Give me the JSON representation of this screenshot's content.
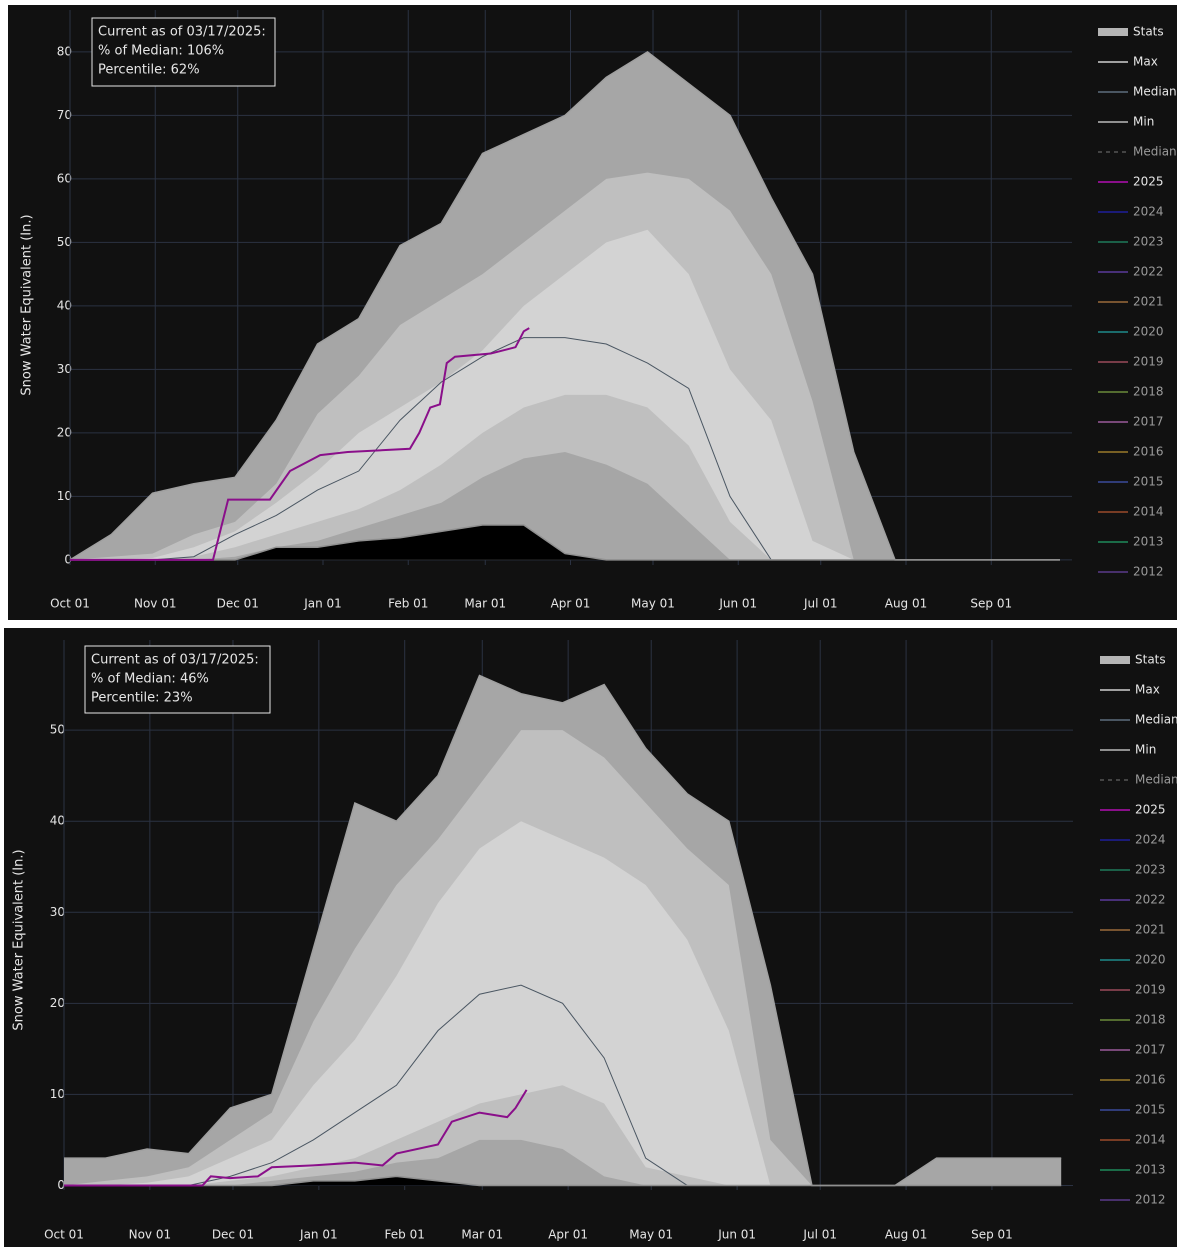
{
  "chart_data": [
    {
      "type": "area",
      "y_label": "Snow Water Equivalent (In.)",
      "annotation": [
        "Current as of 03/17/2025:",
        "% of Median: 106%",
        "Percentile: 62%"
      ],
      "xlim": [
        0,
        364
      ],
      "xticks": [
        {
          "value": 0,
          "label": "Oct 01"
        },
        {
          "value": 31,
          "label": "Nov 01"
        },
        {
          "value": 61,
          "label": "Dec 01"
        },
        {
          "value": 92,
          "label": "Jan 01"
        },
        {
          "value": 123,
          "label": "Feb 01"
        },
        {
          "value": 151,
          "label": "Mar 01"
        },
        {
          "value": 182,
          "label": "Apr 01"
        },
        {
          "value": 212,
          "label": "May 01"
        },
        {
          "value": 243,
          "label": "Jun 01"
        },
        {
          "value": 273,
          "label": "Jul 01"
        },
        {
          "value": 304,
          "label": "Aug 01"
        },
        {
          "value": 335,
          "label": "Sep 01"
        }
      ],
      "ylim": [
        -0.8,
        86.6
      ],
      "yticks": [
        0,
        10,
        20,
        30,
        40,
        50,
        60,
        70,
        80
      ],
      "grid": true,
      "x": [
        0,
        15,
        30,
        45,
        60,
        75,
        90,
        105,
        120,
        135,
        150,
        165,
        180,
        195,
        210,
        225,
        240,
        255,
        270,
        285,
        300,
        315,
        330,
        345,
        360
      ],
      "stats": {
        "name": "Stats",
        "color": "#b5b5b5",
        "fills": [
          "#bfbfbf",
          "#d3d3d3",
          "#bfbfbf",
          "#a6a6a6"
        ],
        "levels": [
          [
            0,
            0.5,
            1,
            4,
            6,
            12,
            23,
            29,
            37,
            41,
            45,
            50,
            55,
            60,
            61,
            60,
            55,
            45,
            25,
            0,
            0,
            0,
            0,
            0,
            0
          ],
          [
            0,
            0,
            0.3,
            2,
            4.5,
            9,
            14,
            20,
            24,
            28,
            33,
            40,
            45,
            50,
            52,
            45,
            30,
            22,
            3,
            0,
            0,
            0,
            0,
            0,
            0
          ],
          [
            0,
            0,
            0,
            0.5,
            2,
            4,
            6,
            8,
            11,
            15,
            20,
            24,
            26,
            26,
            24,
            18,
            6,
            0,
            0,
            0,
            0,
            0,
            0,
            0,
            0
          ],
          [
            0,
            0,
            0,
            0,
            0.5,
            2,
            3,
            5,
            7,
            9,
            13,
            16,
            17,
            15,
            12,
            6,
            0,
            0,
            0,
            0,
            0,
            0,
            0,
            0,
            0
          ]
        ]
      },
      "series": [
        {
          "name": "Max",
          "color": "#a0a0a0",
          "fill": "#a6a6a6",
          "values": [
            0,
            4,
            10.5,
            12,
            13,
            22,
            34,
            38,
            49.5,
            53,
            64,
            67,
            70,
            76,
            80,
            75,
            70,
            57,
            45,
            17,
            0,
            0,
            0,
            0,
            0
          ]
        },
        {
          "name": "Median",
          "color": "#4a5662",
          "values": [
            0,
            0,
            0,
            0.5,
            4,
            7,
            11,
            14,
            22,
            28,
            32,
            35,
            35,
            34,
            31,
            27,
            10,
            0,
            0,
            0,
            0,
            0,
            0,
            0,
            0
          ]
        },
        {
          "name": "Min",
          "color": "#909090",
          "fill": "#000000",
          "values": [
            0,
            0,
            0,
            0,
            0,
            2,
            2,
            3,
            3.5,
            4.5,
            5.5,
            5.5,
            1,
            0,
            0,
            0,
            0,
            0,
            0,
            0,
            0,
            0,
            0,
            0,
            0
          ]
        },
        {
          "name": "Median",
          "color": "#555555",
          "dash": true,
          "visible": false
        },
        {
          "name": "2025",
          "color": "#8a0f8a",
          "x": [
            0,
            52,
            57.5,
            72.7,
            80,
            91,
            101,
            123.6,
            127,
            131,
            134.5,
            137,
            140,
            153,
            162,
            165,
            167
          ],
          "values": [
            0,
            0,
            9.5,
            9.5,
            14,
            16.5,
            17,
            17.5,
            20,
            24,
            24.5,
            31,
            32,
            32.5,
            33.5,
            36,
            36.5
          ]
        },
        {
          "name": "2024",
          "color": "#1f1f9a",
          "visible": false
        },
        {
          "name": "2023",
          "color": "#1f7a5a",
          "visible": false
        },
        {
          "name": "2022",
          "color": "#5a3a9a",
          "visible": false
        },
        {
          "name": "2021",
          "color": "#9a6a3a",
          "visible": false
        },
        {
          "name": "2020",
          "color": "#1f8a8a",
          "visible": false
        },
        {
          "name": "2019",
          "color": "#9a4a5a",
          "visible": false
        },
        {
          "name": "2018",
          "color": "#6a8a3a",
          "visible": false
        },
        {
          "name": "2017",
          "color": "#9a5a9a",
          "visible": false
        },
        {
          "name": "2016",
          "color": "#9a7a2a",
          "visible": false
        },
        {
          "name": "2015",
          "color": "#3a4a9a",
          "visible": false
        },
        {
          "name": "2014",
          "color": "#9a4a2a",
          "visible": false
        },
        {
          "name": "2013",
          "color": "#1f8a5a",
          "visible": false
        },
        {
          "name": "2012",
          "color": "#5a3a8a",
          "visible": false
        }
      ]
    },
    {
      "type": "area",
      "y_label": "Snow Water Equivalent (In.)",
      "annotation": [
        "Current as of 03/17/2025:",
        "% of Median: 46%",
        "Percentile: 23%"
      ],
      "xlim": [
        0,
        364
      ],
      "xticks": [
        {
          "value": 0,
          "label": "Oct 01"
        },
        {
          "value": 31,
          "label": "Nov 01"
        },
        {
          "value": 61,
          "label": "Dec 01"
        },
        {
          "value": 92,
          "label": "Jan 01"
        },
        {
          "value": 123,
          "label": "Feb 01"
        },
        {
          "value": 151,
          "label": "Mar 01"
        },
        {
          "value": 182,
          "label": "Apr 01"
        },
        {
          "value": 212,
          "label": "May 01"
        },
        {
          "value": 243,
          "label": "Jun 01"
        },
        {
          "value": 273,
          "label": "Jul 01"
        },
        {
          "value": 304,
          "label": "Aug 01"
        },
        {
          "value": 335,
          "label": "Sep 01"
        }
      ],
      "ylim": [
        -0.5,
        59.9
      ],
      "yticks": [
        0,
        10,
        20,
        30,
        40,
        50
      ],
      "grid": true,
      "x": [
        0,
        15,
        30,
        45,
        60,
        75,
        90,
        105,
        120,
        135,
        150,
        165,
        180,
        195,
        210,
        225,
        240,
        255,
        270,
        285,
        300,
        315,
        330,
        345,
        360
      ],
      "stats": {
        "name": "Stats",
        "color": "#b5b5b5",
        "fills": [
          "#bfbfbf",
          "#d3d3d3",
          "#bfbfbf",
          "#a6a6a6"
        ],
        "levels": [
          [
            0,
            0.5,
            1,
            2,
            5,
            8,
            18,
            26,
            33,
            38,
            44,
            50,
            50,
            47,
            42,
            37,
            33,
            5,
            0,
            0,
            0,
            0,
            0,
            0,
            0
          ],
          [
            0,
            0,
            0.3,
            1,
            3,
            5,
            11,
            16,
            23,
            31,
            37,
            40,
            38,
            36,
            33,
            27,
            17,
            0,
            0,
            0,
            0,
            0,
            0,
            0,
            0
          ],
          [
            0,
            0,
            0,
            0,
            0.5,
            1,
            2,
            3,
            5,
            7,
            9,
            10,
            11,
            9,
            2,
            1,
            0,
            0,
            0,
            0,
            0,
            0,
            0,
            0,
            0
          ],
          [
            0,
            0,
            0,
            0,
            0,
            0.5,
            1,
            1.5,
            2.5,
            3,
            5,
            5,
            4,
            1,
            0,
            0,
            0,
            0,
            0,
            0,
            0,
            0,
            0,
            0,
            0
          ]
        ]
      },
      "series": [
        {
          "name": "Max",
          "color": "#a0a0a0",
          "fill": "#a6a6a6",
          "values": [
            3,
            3,
            4,
            3.5,
            8.5,
            10,
            26,
            42,
            40,
            45,
            56,
            54,
            53,
            55,
            48,
            43,
            40,
            22,
            0,
            0,
            0,
            3,
            3,
            3,
            3
          ]
        },
        {
          "name": "Median",
          "color": "#4a5662",
          "values": [
            0,
            0,
            0,
            0,
            1,
            2.5,
            5,
            8,
            11,
            17,
            21,
            22,
            20,
            14,
            3,
            0,
            0,
            0,
            0,
            0,
            0,
            0,
            0,
            0,
            0
          ]
        },
        {
          "name": "Min",
          "color": "#909090",
          "fill": "#000000",
          "values": [
            0,
            0,
            0,
            0,
            0,
            0,
            0.5,
            0.5,
            1,
            0.5,
            0,
            0,
            0,
            0,
            0,
            0,
            0,
            0,
            0,
            0,
            0,
            0,
            0,
            0,
            0
          ]
        },
        {
          "name": "Median",
          "color": "#555555",
          "dash": true,
          "visible": false
        },
        {
          "name": "2025",
          "color": "#8a0f8a",
          "x": [
            0,
            50,
            53,
            60,
            70,
            75,
            90,
            105,
            115,
            120,
            135,
            140,
            150,
            160,
            163,
            167
          ],
          "values": [
            0,
            0,
            1,
            0.8,
            1,
            2,
            2.2,
            2.5,
            2.2,
            3.5,
            4.5,
            7,
            8,
            7.5,
            8.5,
            10.5
          ]
        },
        {
          "name": "2024",
          "color": "#1f1f9a",
          "visible": false
        },
        {
          "name": "2023",
          "color": "#1f7a5a",
          "visible": false
        },
        {
          "name": "2022",
          "color": "#5a3a9a",
          "visible": false
        },
        {
          "name": "2021",
          "color": "#9a6a3a",
          "visible": false
        },
        {
          "name": "2020",
          "color": "#1f8a8a",
          "visible": false
        },
        {
          "name": "2019",
          "color": "#9a4a5a",
          "visible": false
        },
        {
          "name": "2018",
          "color": "#6a8a3a",
          "visible": false
        },
        {
          "name": "2017",
          "color": "#9a5a9a",
          "visible": false
        },
        {
          "name": "2016",
          "color": "#9a7a2a",
          "visible": false
        },
        {
          "name": "2015",
          "color": "#3a4a9a",
          "visible": false
        },
        {
          "name": "2014",
          "color": "#9a4a2a",
          "visible": false
        },
        {
          "name": "2013",
          "color": "#1f8a5a",
          "visible": false
        },
        {
          "name": "2012",
          "color": "#5a3a8a",
          "visible": false
        }
      ]
    }
  ]
}
